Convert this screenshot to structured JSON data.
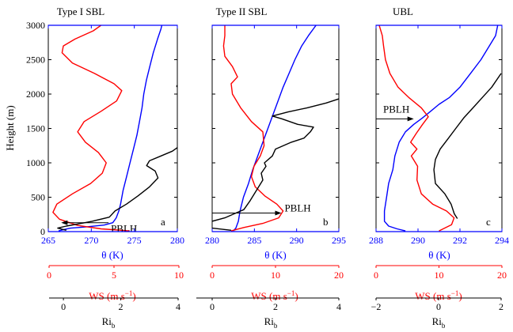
{
  "figure": {
    "ylabel": "Height (m)",
    "xlabel_theta": "θ (K)",
    "xlabel_ws_main": "WS (m s",
    "xlabel_ws_sup": "−1",
    "xlabel_ws_close": ")",
    "xlabel_ri_main": "Ri",
    "xlabel_ri_sub": "b",
    "pblh_label": "PBLH",
    "colors": {
      "theta": "#0000ff",
      "ws": "#ff0000",
      "ri": "#000000",
      "frame": "#000000"
    }
  },
  "chart_data": [
    {
      "type": "line",
      "title": "Type I SBL",
      "panel_label": "a",
      "ylim": [
        0,
        3000
      ],
      "yticks": [
        0,
        500,
        1000,
        1500,
        2000,
        2500,
        3000
      ],
      "theta_axis": {
        "lim": [
          265,
          280
        ],
        "ticks": [
          265,
          270,
          275,
          280
        ]
      },
      "ws_axis": {
        "lim": [
          0,
          10
        ],
        "ticks": [
          0,
          5,
          10
        ]
      },
      "ri_axis": {
        "lim": [
          -0.5,
          4
        ],
        "ticks": [
          0,
          2,
          4
        ]
      },
      "pblh": {
        "height": 130,
        "arrow_from_theta": 272.0,
        "arrow_to_theta": 266.5
      },
      "series": [
        {
          "variable": "theta",
          "points": [
            [
              266.2,
              10
            ],
            [
              266.8,
              30
            ],
            [
              267.6,
              50
            ],
            [
              269.5,
              70
            ],
            [
              271.5,
              95
            ],
            [
              272.5,
              130
            ],
            [
              272.9,
              200
            ],
            [
              273.2,
              300
            ],
            [
              273.4,
              400
            ],
            [
              273.7,
              600
            ],
            [
              274.1,
              800
            ],
            [
              274.5,
              1000
            ],
            [
              274.9,
              1200
            ],
            [
              275.3,
              1400
            ],
            [
              275.6,
              1600
            ],
            [
              275.9,
              1800
            ],
            [
              276.1,
              2000
            ],
            [
              276.4,
              2200
            ],
            [
              276.8,
              2400
            ],
            [
              277.2,
              2600
            ],
            [
              277.7,
              2800
            ],
            [
              278.1,
              2950
            ],
            [
              278.2,
              3000
            ]
          ]
        },
        {
          "variable": "ws",
          "points": [
            [
              6.2,
              10
            ],
            [
              4.0,
              40
            ],
            [
              2.2,
              90
            ],
            [
              0.8,
              180
            ],
            [
              0.3,
              280
            ],
            [
              0.6,
              400
            ],
            [
              1.8,
              550
            ],
            [
              3.2,
              700
            ],
            [
              4.1,
              850
            ],
            [
              4.4,
              1000
            ],
            [
              3.8,
              1150
            ],
            [
              2.8,
              1300
            ],
            [
              2.2,
              1450
            ],
            [
              2.7,
              1600
            ],
            [
              4.0,
              1750
            ],
            [
              5.2,
              1900
            ],
            [
              5.6,
              2050
            ],
            [
              5.0,
              2150
            ],
            [
              3.5,
              2300
            ],
            [
              1.8,
              2450
            ],
            [
              1.0,
              2600
            ],
            [
              1.1,
              2700
            ],
            [
              2.0,
              2800
            ],
            [
              3.4,
              2920
            ],
            [
              4.0,
              3000
            ]
          ]
        },
        {
          "variable": "ri",
          "points": [
            [
              0.1,
              20
            ],
            [
              -0.2,
              50
            ],
            [
              0.1,
              80
            ],
            [
              0.5,
              110
            ],
            [
              1.0,
              150
            ],
            [
              1.6,
              210
            ],
            [
              1.8,
              300
            ],
            [
              2.2,
              400
            ],
            [
              2.6,
              520
            ],
            [
              3.0,
              650
            ],
            [
              3.3,
              780
            ],
            [
              3.2,
              880
            ],
            [
              2.9,
              960
            ],
            [
              3.0,
              1030
            ],
            [
              3.4,
              1100
            ],
            [
              3.8,
              1170
            ],
            [
              4.0,
              1230
            ]
          ]
        },
        {
          "variable": "ri",
          "points": [
            [
              4.0,
              2090
            ],
            [
              3.95,
              2115
            ],
            [
              4.0,
              2140
            ]
          ]
        }
      ]
    },
    {
      "type": "line",
      "title": "Type II SBL",
      "panel_label": "b",
      "ylim": [
        0,
        3000
      ],
      "yticks": [
        0,
        500,
        1000,
        1500,
        2000,
        2500,
        3000
      ],
      "theta_axis": {
        "lim": [
          280,
          295
        ],
        "ticks": [
          280,
          285,
          290,
          295
        ]
      },
      "ws_axis": {
        "lim": [
          0,
          20
        ],
        "ticks": [
          0,
          10,
          20
        ]
      },
      "ri_axis": {
        "lim": [
          -0.5,
          4
        ],
        "ticks": [
          0,
          2,
          4
        ]
      },
      "pblh": {
        "height": 270,
        "arrow_from_theta": 280.0,
        "arrow_to_theta": 288.2
      },
      "series": [
        {
          "variable": "theta",
          "points": [
            [
              282.5,
              10
            ],
            [
              282.8,
              50
            ],
            [
              283.1,
              150
            ],
            [
              283.3,
              300
            ],
            [
              283.7,
              500
            ],
            [
              284.3,
              700
            ],
            [
              284.8,
              900
            ],
            [
              285.4,
              1100
            ],
            [
              286.0,
              1300
            ],
            [
              286.6,
              1500
            ],
            [
              287.2,
              1700
            ],
            [
              287.8,
              1900
            ],
            [
              288.4,
              2100
            ],
            [
              289.1,
              2300
            ],
            [
              289.8,
              2500
            ],
            [
              290.6,
              2700
            ],
            [
              291.4,
              2850
            ],
            [
              292.3,
              3000
            ]
          ]
        },
        {
          "variable": "ws",
          "points": [
            [
              3.0,
              10
            ],
            [
              5.0,
              60
            ],
            [
              8.0,
              120
            ],
            [
              10.5,
              200
            ],
            [
              11.2,
              300
            ],
            [
              10.2,
              400
            ],
            [
              8.3,
              520
            ],
            [
              6.8,
              650
            ],
            [
              6.2,
              800
            ],
            [
              6.6,
              950
            ],
            [
              7.6,
              1100
            ],
            [
              8.2,
              1250
            ],
            [
              8.0,
              1450
            ],
            [
              6.2,
              1600
            ],
            [
              4.5,
              1800
            ],
            [
              3.2,
              2000
            ],
            [
              3.0,
              2150
            ],
            [
              4.0,
              2250
            ],
            [
              3.2,
              2400
            ],
            [
              2.0,
              2550
            ],
            [
              1.8,
              2700
            ],
            [
              2.0,
              2850
            ],
            [
              2.0,
              3000
            ]
          ]
        },
        {
          "variable": "ri",
          "points": [
            [
              0.6,
              20
            ],
            [
              0.0,
              50
            ],
            [
              -0.2,
              100
            ],
            [
              0.0,
              150
            ],
            [
              0.4,
              200
            ],
            [
              0.7,
              260
            ],
            [
              1.0,
              320
            ],
            [
              1.2,
              450
            ],
            [
              1.4,
              600
            ],
            [
              1.6,
              750
            ],
            [
              1.55,
              850
            ],
            [
              1.7,
              950
            ],
            [
              1.65,
              1000
            ],
            [
              1.9,
              1100
            ],
            [
              2.0,
              1200
            ],
            [
              2.5,
              1300
            ],
            [
              2.9,
              1360
            ],
            [
              3.1,
              1450
            ],
            [
              3.2,
              1520
            ],
            [
              2.7,
              1560
            ],
            [
              2.2,
              1640
            ],
            [
              1.9,
              1680
            ],
            [
              2.4,
              1740
            ],
            [
              3.0,
              1800
            ],
            [
              3.6,
              1870
            ],
            [
              4.0,
              1930
            ]
          ]
        }
      ]
    },
    {
      "type": "line",
      "title": "UBL",
      "panel_label": "c",
      "ylim": [
        0,
        3000
      ],
      "yticks": [
        0,
        500,
        1000,
        1500,
        2000,
        2500,
        3000
      ],
      "theta_axis": {
        "lim": [
          288,
          294
        ],
        "ticks": [
          288,
          290,
          292,
          294
        ]
      },
      "ws_axis": {
        "lim": [
          0,
          20
        ],
        "ticks": [
          0,
          10,
          20
        ]
      },
      "ri_axis": {
        "lim": [
          -2,
          2
        ],
        "ticks": [
          -2,
          0,
          2
        ]
      },
      "pblh": {
        "height": 1640,
        "arrow_from_theta": 288.0,
        "arrow_to_theta": 289.8
      },
      "series": [
        {
          "variable": "theta",
          "points": [
            [
              289.4,
              10
            ],
            [
              289.0,
              40
            ],
            [
              288.6,
              80
            ],
            [
              288.4,
              150
            ],
            [
              288.4,
              300
            ],
            [
              288.5,
              500
            ],
            [
              288.6,
              700
            ],
            [
              288.8,
              900
            ],
            [
              288.9,
              1100
            ],
            [
              289.1,
              1300
            ],
            [
              289.4,
              1450
            ],
            [
              289.8,
              1560
            ],
            [
              290.2,
              1650
            ],
            [
              290.6,
              1750
            ],
            [
              291.0,
              1850
            ],
            [
              291.5,
              1950
            ],
            [
              292.0,
              2100
            ],
            [
              292.5,
              2300
            ],
            [
              293.0,
              2500
            ],
            [
              293.4,
              2700
            ],
            [
              293.7,
              2850
            ],
            [
              293.8,
              3000
            ]
          ]
        },
        {
          "variable": "ws",
          "points": [
            [
              10.0,
              10
            ],
            [
              12.0,
              100
            ],
            [
              12.4,
              200
            ],
            [
              11.2,
              300
            ],
            [
              9.0,
              400
            ],
            [
              7.2,
              550
            ],
            [
              6.5,
              750
            ],
            [
              6.6,
              950
            ],
            [
              5.6,
              1100
            ],
            [
              6.5,
              1200
            ],
            [
              5.5,
              1300
            ],
            [
              6.4,
              1430
            ],
            [
              7.4,
              1560
            ],
            [
              8.3,
              1670
            ],
            [
              7.2,
              1800
            ],
            [
              5.2,
              1950
            ],
            [
              3.5,
              2100
            ],
            [
              2.2,
              2300
            ],
            [
              1.5,
              2500
            ],
            [
              1.2,
              2700
            ],
            [
              1.0,
              2850
            ],
            [
              0.5,
              3000
            ]
          ]
        },
        {
          "variable": "ri",
          "points": [
            [
              0.6,
              190
            ],
            [
              0.5,
              260
            ],
            [
              0.4,
              400
            ],
            [
              0.2,
              550
            ],
            [
              -0.1,
              700
            ],
            [
              -0.15,
              900
            ],
            [
              -0.1,
              1050
            ],
            [
              0.05,
              1200
            ],
            [
              0.3,
              1350
            ],
            [
              0.55,
              1500
            ],
            [
              0.8,
              1650
            ],
            [
              1.1,
              1800
            ],
            [
              1.4,
              1950
            ],
            [
              1.7,
              2100
            ],
            [
              2.0,
              2300
            ]
          ]
        }
      ]
    }
  ]
}
